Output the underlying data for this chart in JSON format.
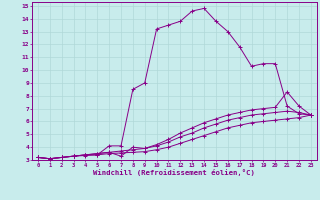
{
  "xlabel": "Windchill (Refroidissement éolien,°C)",
  "xlim": [
    -0.5,
    23.5
  ],
  "ylim": [
    3,
    15.3
  ],
  "xticks": [
    0,
    1,
    2,
    3,
    4,
    5,
    6,
    7,
    8,
    9,
    10,
    11,
    12,
    13,
    14,
    15,
    16,
    17,
    18,
    19,
    20,
    21,
    22,
    23
  ],
  "yticks": [
    3,
    4,
    5,
    6,
    7,
    8,
    9,
    10,
    11,
    12,
    13,
    14,
    15
  ],
  "bg_color": "#c8ecec",
  "line_color": "#880088",
  "grid_color": "#b0d8d8",
  "lines": [
    {
      "x": [
        0,
        1,
        2,
        3,
        4,
        5,
        6,
        7,
        8,
        9,
        10,
        11,
        12,
        13,
        14,
        15,
        16,
        17,
        18,
        19,
        20,
        21,
        22,
        23
      ],
      "y": [
        3.2,
        3.1,
        3.2,
        3.3,
        3.4,
        3.4,
        4.1,
        4.1,
        8.5,
        9.0,
        13.2,
        13.5,
        13.8,
        14.6,
        14.8,
        13.8,
        13.0,
        11.8,
        10.3,
        10.5,
        10.5,
        7.2,
        6.6,
        6.5
      ]
    },
    {
      "x": [
        0,
        1,
        2,
        3,
        4,
        5,
        6,
        7,
        8,
        9,
        10,
        11,
        12,
        13,
        14,
        15,
        16,
        17,
        18,
        19,
        20,
        21,
        22,
        23
      ],
      "y": [
        3.2,
        3.1,
        3.2,
        3.3,
        3.4,
        3.5,
        3.6,
        3.3,
        4.0,
        3.9,
        4.2,
        4.6,
        5.1,
        5.5,
        5.9,
        6.2,
        6.5,
        6.7,
        6.9,
        7.0,
        7.1,
        8.3,
        7.2,
        6.5
      ]
    },
    {
      "x": [
        0,
        1,
        2,
        3,
        4,
        5,
        6,
        7,
        8,
        9,
        10,
        11,
        12,
        13,
        14,
        15,
        16,
        17,
        18,
        19,
        20,
        21,
        22,
        23
      ],
      "y": [
        3.2,
        3.1,
        3.2,
        3.3,
        3.4,
        3.5,
        3.6,
        3.7,
        3.8,
        3.9,
        4.1,
        4.4,
        4.8,
        5.1,
        5.5,
        5.8,
        6.1,
        6.3,
        6.5,
        6.6,
        6.7,
        6.8,
        6.7,
        6.5
      ]
    },
    {
      "x": [
        0,
        1,
        2,
        3,
        4,
        5,
        6,
        7,
        8,
        9,
        10,
        11,
        12,
        13,
        14,
        15,
        16,
        17,
        18,
        19,
        20,
        21,
        22,
        23
      ],
      "y": [
        3.2,
        3.1,
        3.2,
        3.3,
        3.35,
        3.4,
        3.5,
        3.55,
        3.6,
        3.65,
        3.8,
        4.0,
        4.3,
        4.6,
        4.9,
        5.2,
        5.5,
        5.7,
        5.9,
        6.0,
        6.1,
        6.2,
        6.3,
        6.5
      ]
    }
  ]
}
